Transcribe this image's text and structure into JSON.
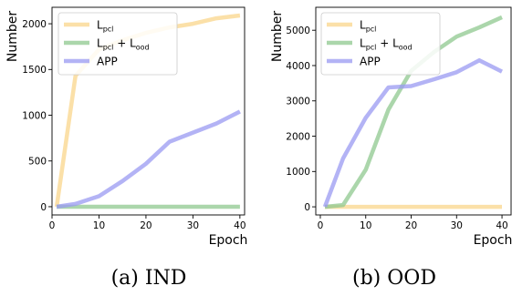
{
  "chart_data": [
    {
      "type": "line",
      "caption": "(a) IND",
      "xlabel": "Epoch",
      "ylabel": "Number",
      "xlim": [
        0,
        41
      ],
      "ylim": [
        -90,
        2180
      ],
      "xticks": [
        0,
        10,
        20,
        30,
        40
      ],
      "yticks": [
        0,
        500,
        1000,
        1500,
        2000
      ],
      "legend_position": "top-left",
      "series": [
        {
          "name": "L",
          "name_sub": "pcl",
          "color": "#f9d58b",
          "x": [
            1,
            5,
            10,
            15,
            20,
            25,
            30,
            35,
            40
          ],
          "y": [
            0,
            1430,
            1720,
            1820,
            1900,
            1960,
            2000,
            2060,
            2090
          ]
        },
        {
          "name": "L",
          "name_sub": "pcl",
          "name_tail": " + L",
          "name_tail_sub": "ood",
          "color": "#8fc88f",
          "x": [
            1,
            5,
            10,
            15,
            20,
            25,
            30,
            35,
            40
          ],
          "y": [
            0,
            0,
            0,
            0,
            0,
            0,
            0,
            0,
            0
          ]
        },
        {
          "name": "APP",
          "color": "#9999f2",
          "x": [
            1,
            5,
            10,
            15,
            20,
            25,
            30,
            35,
            40
          ],
          "y": [
            0,
            30,
            115,
            280,
            470,
            710,
            810,
            910,
            1040
          ]
        }
      ]
    },
    {
      "type": "line",
      "caption": "(b) OOD",
      "xlabel": "Epoch",
      "ylabel": "Number",
      "xlim": [
        -1,
        42
      ],
      "ylim": [
        -230,
        5650
      ],
      "xticks": [
        0,
        10,
        20,
        30,
        40
      ],
      "yticks": [
        0,
        1000,
        2000,
        3000,
        4000,
        5000
      ],
      "legend_position": "top-left",
      "series": [
        {
          "name": "L",
          "name_sub": "pcl",
          "color": "#f9d58b",
          "x": [
            1,
            5,
            10,
            15,
            20,
            25,
            30,
            35,
            40
          ],
          "y": [
            0,
            0,
            0,
            0,
            0,
            0,
            0,
            0,
            0
          ]
        },
        {
          "name": "L",
          "name_sub": "pcl",
          "name_tail": " + L",
          "name_tail_sub": "ood",
          "color": "#8fc88f",
          "x": [
            1,
            5,
            10,
            15,
            20,
            25,
            30,
            35,
            40
          ],
          "y": [
            0,
            50,
            1050,
            2750,
            3850,
            4380,
            4820,
            5080,
            5370
          ]
        },
        {
          "name": "APP",
          "color": "#9999f2",
          "x": [
            1,
            5,
            10,
            15,
            20,
            25,
            30,
            35,
            40
          ],
          "y": [
            0,
            1370,
            2520,
            3380,
            3420,
            3610,
            3810,
            4150,
            3830
          ]
        }
      ]
    }
  ]
}
